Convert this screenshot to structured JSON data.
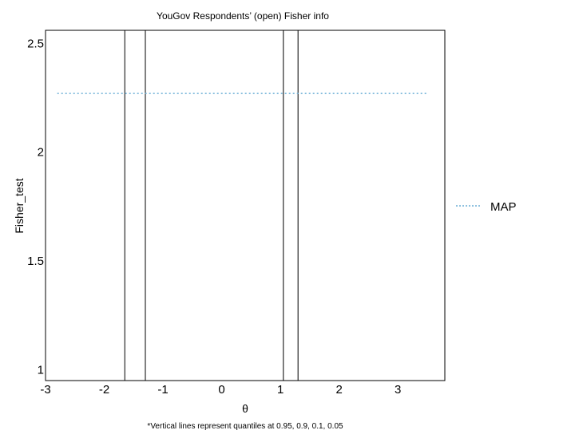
{
  "chart_data": {
    "type": "line",
    "title": "YouGov Respondents’ (open) Fisher info",
    "xlabel": "θ",
    "ylabel": "Fisher_test",
    "footnote": "*Vertical lines represent quantiles at 0.95, 0.9, 0.1, 0.05",
    "xlim": [
      -3.0,
      3.8
    ],
    "ylim": [
      0.95,
      2.56
    ],
    "x_ticks": [
      -3,
      -2,
      -1,
      0,
      1,
      2,
      3
    ],
    "x_tick_labels": [
      "-3",
      "-2",
      "-1",
      "0",
      "1",
      "2",
      "3"
    ],
    "y_ticks": [
      1,
      1.5,
      2,
      2.5
    ],
    "y_tick_labels": [
      "1",
      "1.5",
      "2",
      "2.5"
    ],
    "grid": false,
    "legend_position": "right",
    "series": [
      {
        "name": "MAP",
        "style": "dotted",
        "color": "#6baed6",
        "x": [
          -2.8,
          3.5
        ],
        "y": [
          2.27,
          2.27
        ]
      }
    ],
    "quantile_lines": [
      -1.65,
      -1.3,
      1.05,
      1.3
    ]
  }
}
